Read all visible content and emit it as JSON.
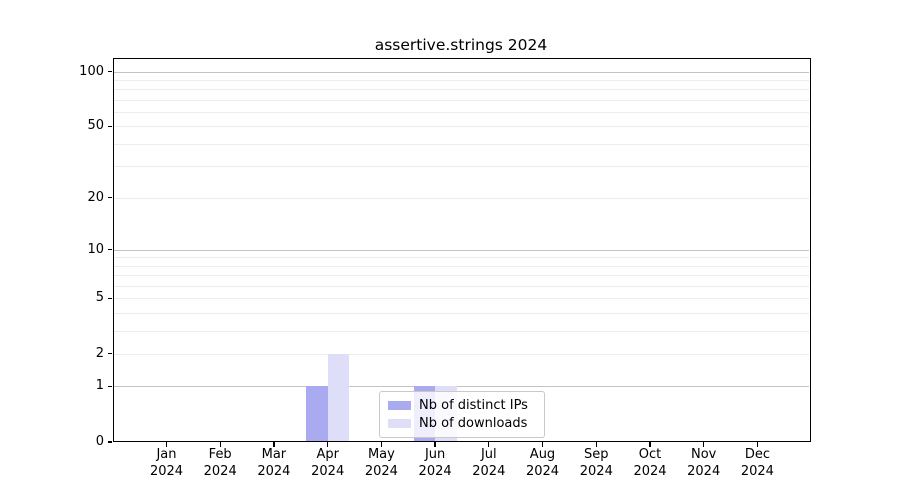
{
  "chart_data": {
    "type": "bar",
    "title": "assertive.strings 2024",
    "categories": [
      "Jan",
      "Feb",
      "Mar",
      "Apr",
      "May",
      "Jun",
      "Jul",
      "Aug",
      "Sep",
      "Oct",
      "Nov",
      "Dec"
    ],
    "x_tick_second_line": "2024",
    "xlabel": "",
    "ylabel": "",
    "y_scale": "log1p",
    "y_ticks": [
      0,
      1,
      2,
      5,
      10,
      20,
      50,
      100
    ],
    "ylim": [
      0,
      117
    ],
    "grid_major_values": [
      1,
      10,
      100
    ],
    "grid_minor_values": [
      2,
      3,
      4,
      5,
      6,
      7,
      8,
      9,
      20,
      30,
      40,
      50,
      60,
      70,
      80,
      90
    ],
    "series": [
      {
        "name": "Nb of distinct IPs",
        "color": "#aaaaf0",
        "values": [
          0,
          0,
          0,
          1,
          0,
          1,
          0,
          0,
          0,
          0,
          0,
          0
        ]
      },
      {
        "name": "Nb of downloads",
        "color": "#dedef8",
        "values": [
          0,
          0,
          0,
          2,
          0,
          1,
          0,
          0,
          0,
          0,
          0,
          0
        ]
      }
    ],
    "legend_position": "inside-bottom-center",
    "grid": "horizontal-both"
  },
  "colors": {
    "background": "#ffffff",
    "axis": "#000000",
    "text": "#000000",
    "grid_major": "#c3c3c3",
    "grid_minor": "#ececec",
    "legend_border": "#c9c9c9"
  }
}
